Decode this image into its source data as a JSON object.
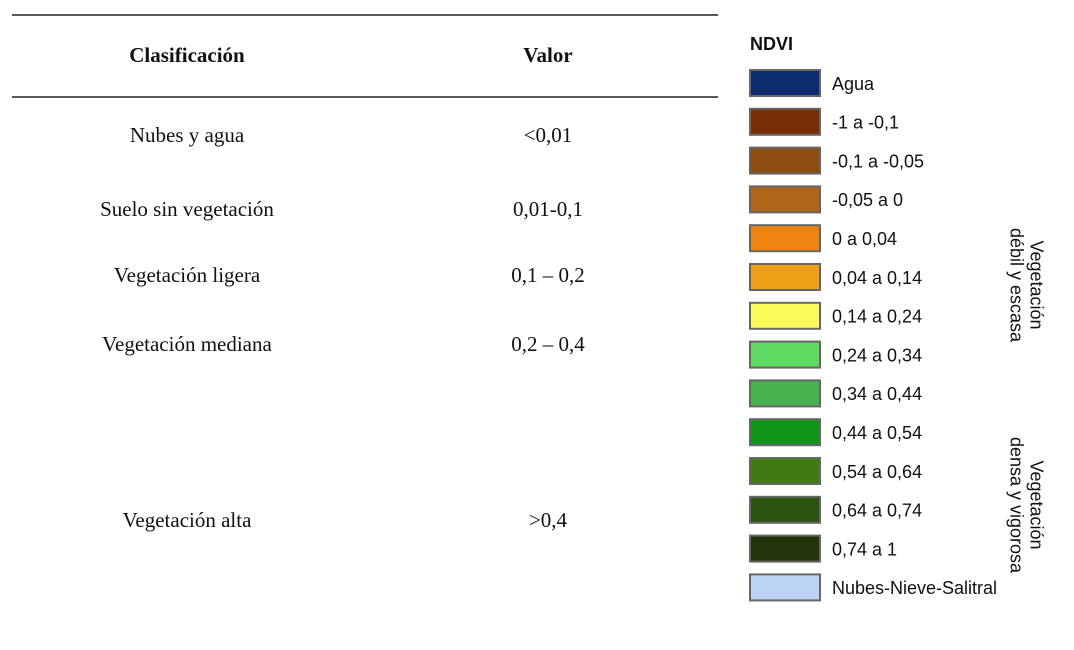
{
  "table": {
    "header": [
      "Clasificación",
      "Valor"
    ],
    "rows": [
      [
        "Nubes y agua",
        "<0,01"
      ],
      [
        "Suelo sin vegetación",
        "0,01-0,1"
      ],
      [
        "Vegetación ligera",
        "0,1 – 0,2"
      ],
      [
        "Vegetación mediana",
        "0,2 – 0,4"
      ],
      [
        "Vegetación alta",
        ">0,4"
      ]
    ]
  },
  "legend": {
    "title": "NDVI",
    "items": [
      {
        "label": "Agua",
        "color": "#0b2d6e"
      },
      {
        "label": "-1 a -0,1",
        "color": "#7a2e05"
      },
      {
        "label": "-0,1 a -0,05",
        "color": "#8e4d10"
      },
      {
        "label": "-0,05 a 0",
        "color": "#b0661a"
      },
      {
        "label": "0 a 0,04",
        "color": "#ee8410"
      },
      {
        "label": "0,04 a 0,14",
        "color": "#f0a016"
      },
      {
        "label": "0,14 a 0,24",
        "color": "#fafa5a"
      },
      {
        "label": "0,24 a 0,34",
        "color": "#5fdb64"
      },
      {
        "label": "0,34 a 0,44",
        "color": "#49b34f"
      },
      {
        "label": "0,44 a 0,54",
        "color": "#0e9618"
      },
      {
        "label": "0,54 a 0,64",
        "color": "#3f7b10"
      },
      {
        "label": "0,64 a 0,74",
        "color": "#2c5410"
      },
      {
        "label": "0,74 a 1",
        "color": "#24330a"
      },
      {
        "label": "Nubes-Nieve-Salitral",
        "color": "#bcd3f5"
      }
    ],
    "groups": [
      [
        "Vegetación",
        "débil y escasa"
      ],
      [
        "Vegetación",
        "densa y vigorosa"
      ]
    ]
  }
}
